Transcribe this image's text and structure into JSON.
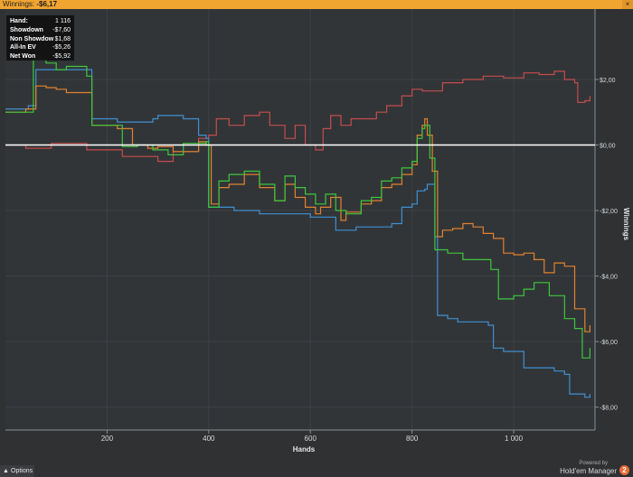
{
  "window": {
    "title_label": "Winnings:",
    "title_value": "-$6,17",
    "close_glyph": "×"
  },
  "tooltip": {
    "rows": [
      {
        "label": "Hand:",
        "value": "1 116"
      },
      {
        "label": "Showdown",
        "value": "-$7,60"
      },
      {
        "label": "Non Showdow",
        "value": "$1,68"
      },
      {
        "label": "All-In EV",
        "value": "-$5,26"
      },
      {
        "label": "Net Won",
        "value": "-$5,92"
      }
    ]
  },
  "options": {
    "label": "Options",
    "icon": "chevron-up-icon"
  },
  "branding": {
    "powered": "Powered by",
    "name": "Hold'em Manager",
    "badge": "2"
  },
  "chart_data": {
    "type": "line",
    "xlabel": "Hands",
    "ylabel": "Winnings",
    "xlim": [
      0,
      1160
    ],
    "ylim": [
      -8.7,
      4.15
    ],
    "x_ticks": [
      200,
      400,
      600,
      800,
      1000
    ],
    "x_tick_labels": [
      "200",
      "400",
      "600",
      "800",
      "1 000"
    ],
    "y_ticks": [
      2,
      0,
      -2,
      -4,
      -6,
      -8
    ],
    "y_tick_labels": [
      "$2,00",
      "$0,00",
      "-$2,00",
      "-$4,00",
      "-$6,00",
      "-$8,00"
    ],
    "grid": true,
    "legend_position": "bottom",
    "zero_line_color": "#ffffff",
    "series": [
      {
        "name": "Non Showdown",
        "color": "#c44c4c",
        "points": [
          [
            0,
            0
          ],
          [
            40,
            -0.1
          ],
          [
            90,
            0.05
          ],
          [
            160,
            -0.15
          ],
          [
            230,
            -0.35
          ],
          [
            300,
            -0.5
          ],
          [
            330,
            -0.2
          ],
          [
            380,
            0.2
          ],
          [
            400,
            0.3
          ],
          [
            415,
            0.8
          ],
          [
            440,
            0.6
          ],
          [
            470,
            0.9
          ],
          [
            500,
            1.0
          ],
          [
            520,
            0.6
          ],
          [
            550,
            0.2
          ],
          [
            570,
            0.6
          ],
          [
            590,
            0.0
          ],
          [
            610,
            -0.15
          ],
          [
            625,
            0.5
          ],
          [
            640,
            0.9
          ],
          [
            660,
            0.6
          ],
          [
            680,
            0.8
          ],
          [
            700,
            0.8
          ],
          [
            730,
            1.0
          ],
          [
            750,
            1.2
          ],
          [
            780,
            1.5
          ],
          [
            800,
            1.7
          ],
          [
            820,
            1.65
          ],
          [
            860,
            1.9
          ],
          [
            900,
            2.0
          ],
          [
            940,
            2.1
          ],
          [
            980,
            2.05
          ],
          [
            1020,
            2.2
          ],
          [
            1050,
            2.15
          ],
          [
            1080,
            2.25
          ],
          [
            1100,
            2.0
          ],
          [
            1120,
            1.9
          ],
          [
            1126,
            1.3
          ],
          [
            1140,
            1.35
          ],
          [
            1150,
            1.5
          ]
        ]
      },
      {
        "name": "Showdown",
        "color": "#3f8fcf",
        "points": [
          [
            0,
            1.1
          ],
          [
            45,
            1.2
          ],
          [
            60,
            2.3
          ],
          [
            120,
            2.3
          ],
          [
            165,
            2.3
          ],
          [
            170,
            0.8
          ],
          [
            220,
            0.7
          ],
          [
            290,
            0.8
          ],
          [
            300,
            0.9
          ],
          [
            330,
            0.9
          ],
          [
            350,
            0.8
          ],
          [
            380,
            0.3
          ],
          [
            395,
            0.2
          ],
          [
            400,
            -1.9
          ],
          [
            420,
            -1.9
          ],
          [
            450,
            -2.0
          ],
          [
            500,
            -2.1
          ],
          [
            560,
            -2.1
          ],
          [
            600,
            -2.2
          ],
          [
            640,
            -2.2
          ],
          [
            650,
            -2.6
          ],
          [
            690,
            -2.5
          ],
          [
            720,
            -2.5
          ],
          [
            760,
            -2.4
          ],
          [
            780,
            -1.9
          ],
          [
            800,
            -1.8
          ],
          [
            810,
            -1.4
          ],
          [
            820,
            -1.4
          ],
          [
            825,
            -1.35
          ],
          [
            830,
            -1.2
          ],
          [
            845,
            -2.8
          ],
          [
            850,
            -5.2
          ],
          [
            870,
            -5.3
          ],
          [
            890,
            -5.4
          ],
          [
            920,
            -5.4
          ],
          [
            950,
            -5.5
          ],
          [
            960,
            -6.2
          ],
          [
            980,
            -6.3
          ],
          [
            1000,
            -6.3
          ],
          [
            1020,
            -6.8
          ],
          [
            1050,
            -6.8
          ],
          [
            1080,
            -6.9
          ],
          [
            1100,
            -7.0
          ],
          [
            1110,
            -7.6
          ],
          [
            1140,
            -7.7
          ],
          [
            1150,
            -7.6
          ]
        ]
      },
      {
        "name": "All-In EV",
        "color": "#e0822e",
        "points": [
          [
            0,
            1.0
          ],
          [
            40,
            1.1
          ],
          [
            60,
            1.8
          ],
          [
            80,
            1.75
          ],
          [
            100,
            1.7
          ],
          [
            120,
            1.6
          ],
          [
            160,
            1.6
          ],
          [
            170,
            0.6
          ],
          [
            220,
            0.5
          ],
          [
            250,
            0.0
          ],
          [
            280,
            -0.1
          ],
          [
            300,
            -0.05
          ],
          [
            330,
            -0.2
          ],
          [
            380,
            0.1
          ],
          [
            395,
            0.0
          ],
          [
            405,
            -1.8
          ],
          [
            420,
            -1.3
          ],
          [
            440,
            -1.2
          ],
          [
            470,
            -0.9
          ],
          [
            500,
            -1.3
          ],
          [
            530,
            -1.7
          ],
          [
            550,
            -1.2
          ],
          [
            570,
            -1.6
          ],
          [
            590,
            -1.9
          ],
          [
            610,
            -2.1
          ],
          [
            620,
            -1.9
          ],
          [
            640,
            -1.6
          ],
          [
            660,
            -2.3
          ],
          [
            670,
            -2.05
          ],
          [
            700,
            -1.8
          ],
          [
            720,
            -1.7
          ],
          [
            740,
            -1.3
          ],
          [
            760,
            -1.2
          ],
          [
            780,
            -0.9
          ],
          [
            800,
            -0.6
          ],
          [
            810,
            0.3
          ],
          [
            820,
            0.6
          ],
          [
            825,
            0.8
          ],
          [
            830,
            0.3
          ],
          [
            840,
            -0.8
          ],
          [
            850,
            -2.8
          ],
          [
            860,
            -2.6
          ],
          [
            880,
            -2.55
          ],
          [
            900,
            -2.4
          ],
          [
            920,
            -2.5
          ],
          [
            940,
            -2.7
          ],
          [
            960,
            -2.85
          ],
          [
            980,
            -3.3
          ],
          [
            1000,
            -3.35
          ],
          [
            1020,
            -3.3
          ],
          [
            1040,
            -3.5
          ],
          [
            1060,
            -3.9
          ],
          [
            1080,
            -3.6
          ],
          [
            1100,
            -3.7
          ],
          [
            1120,
            -5.0
          ],
          [
            1140,
            -5.7
          ],
          [
            1150,
            -5.5
          ]
        ]
      },
      {
        "name": "Net Won",
        "color": "#3cc73c",
        "points": [
          [
            0,
            1.0
          ],
          [
            40,
            1.0
          ],
          [
            55,
            2.6
          ],
          [
            80,
            2.5
          ],
          [
            100,
            2.3
          ],
          [
            120,
            2.4
          ],
          [
            160,
            2.1
          ],
          [
            170,
            0.6
          ],
          [
            200,
            0.6
          ],
          [
            230,
            -0.05
          ],
          [
            260,
            0.0
          ],
          [
            290,
            -0.15
          ],
          [
            320,
            -0.3
          ],
          [
            350,
            0.05
          ],
          [
            395,
            0.1
          ],
          [
            400,
            -1.9
          ],
          [
            420,
            -1.1
          ],
          [
            440,
            -0.9
          ],
          [
            470,
            -0.8
          ],
          [
            500,
            -1.2
          ],
          [
            530,
            -1.7
          ],
          [
            550,
            -0.95
          ],
          [
            570,
            -1.3
          ],
          [
            590,
            -1.5
          ],
          [
            610,
            -1.8
          ],
          [
            630,
            -1.5
          ],
          [
            650,
            -2.0
          ],
          [
            670,
            -2.1
          ],
          [
            700,
            -1.7
          ],
          [
            720,
            -1.6
          ],
          [
            740,
            -1.1
          ],
          [
            760,
            -1.0
          ],
          [
            780,
            -0.7
          ],
          [
            800,
            -0.5
          ],
          [
            810,
            0.2
          ],
          [
            820,
            0.5
          ],
          [
            825,
            0.6
          ],
          [
            835,
            -0.4
          ],
          [
            845,
            -3.2
          ],
          [
            870,
            -3.3
          ],
          [
            900,
            -3.5
          ],
          [
            930,
            -3.5
          ],
          [
            955,
            -3.8
          ],
          [
            970,
            -4.7
          ],
          [
            1000,
            -4.6
          ],
          [
            1020,
            -4.4
          ],
          [
            1040,
            -4.2
          ],
          [
            1070,
            -4.6
          ],
          [
            1100,
            -5.3
          ],
          [
            1120,
            -5.6
          ],
          [
            1135,
            -6.5
          ],
          [
            1150,
            -6.2
          ]
        ]
      }
    ]
  }
}
